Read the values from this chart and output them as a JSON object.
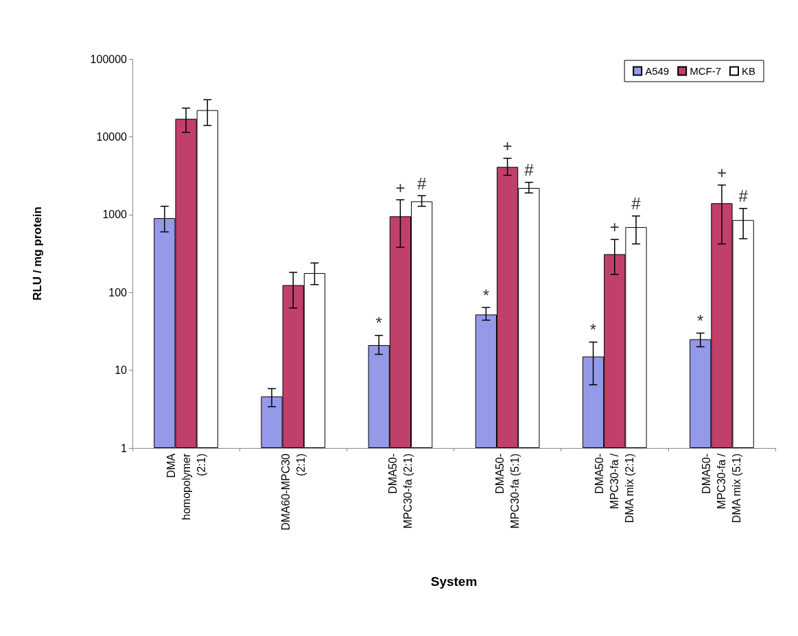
{
  "chart_data": {
    "type": "bar",
    "xlabel": "System",
    "ylabel": "RLU / mg protein",
    "categories": [
      "DMA\nhomopolymer\n(2:1)",
      "DMA60-MPC30\n(2:1)",
      "DMA50-\nMPC30-fa (2:1)",
      "DMA50-\nMPC30-fa (5:1)",
      "DMA50-\nMPC30-fa /\nDMA mix (2:1)",
      "DMA50-\nMPC30-fa /\nDMA mix (5:1)"
    ],
    "series": [
      {
        "name": "A549",
        "color": "#9499e8",
        "values": [
          900,
          4.6,
          21,
          52,
          15,
          25
        ],
        "errors": [
          [
            600,
            1280
          ],
          [
            3.4,
            5.8
          ],
          [
            16,
            28
          ],
          [
            44,
            64
          ],
          [
            6.5,
            23
          ],
          [
            20,
            30
          ]
        ],
        "value_labels": [
          null,
          null,
          "*",
          "*",
          "*",
          "*"
        ]
      },
      {
        "name": "MCF-7",
        "color": "#c0406a",
        "values": [
          17000,
          124,
          950,
          4100,
          310,
          1400
        ],
        "errors": [
          [
            11400,
            23400
          ],
          [
            63,
            181
          ],
          [
            380,
            1550
          ],
          [
            3200,
            5300
          ],
          [
            170,
            480
          ],
          [
            420,
            2400
          ]
        ],
        "value_labels": [
          null,
          null,
          "+",
          "+",
          "+",
          "+"
        ]
      },
      {
        "name": "KB",
        "color": "#ffffff",
        "values": [
          22000,
          177,
          1480,
          2200,
          690,
          850
        ],
        "errors": [
          [
            14000,
            30000
          ],
          [
            126,
            239
          ],
          [
            1280,
            1750
          ],
          [
            1900,
            2600
          ],
          [
            420,
            960
          ],
          [
            490,
            1200
          ]
        ],
        "value_labels": [
          null,
          null,
          "#",
          "#",
          "#",
          "#"
        ]
      }
    ],
    "log": "y",
    "ylim": [
      1,
      100000
    ],
    "yticks": [
      1,
      10,
      100,
      1000,
      10000,
      100000
    ],
    "grid": false,
    "legend": "top right"
  }
}
